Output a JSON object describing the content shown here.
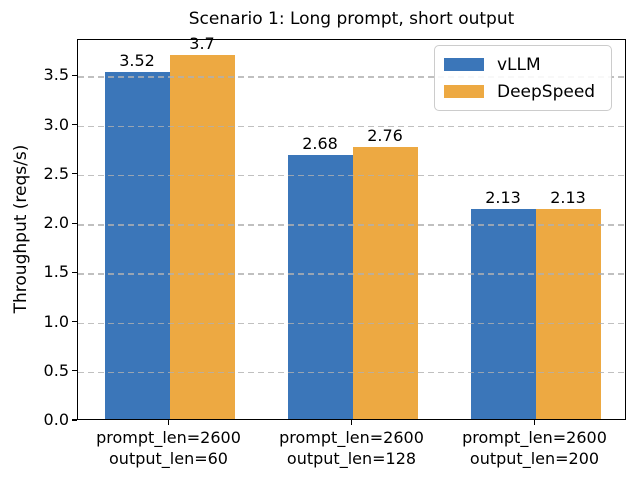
{
  "chart_data": {
    "type": "bar",
    "title": "Scenario 1: Long prompt, short output",
    "xlabel": "",
    "ylabel": "Throughput (reqs/s)",
    "categories": [
      [
        "prompt_len=2600",
        "output_len=60"
      ],
      [
        "prompt_len=2600",
        "output_len=128"
      ],
      [
        "prompt_len=2600",
        "output_len=200"
      ]
    ],
    "series": [
      {
        "name": "vLLM",
        "color": "#3b76b9",
        "values": [
          3.52,
          2.68,
          2.13
        ],
        "labels": [
          "3.52",
          "2.68",
          "2.13"
        ]
      },
      {
        "name": "DeepSpeed",
        "color": "#eda942",
        "values": [
          3.7,
          2.76,
          2.13
        ],
        "labels": [
          "3.7",
          "2.76",
          "2.13"
        ]
      }
    ],
    "ylim": [
      0,
      3.87
    ],
    "yticks": [
      0.0,
      0.5,
      1.0,
      1.5,
      2.0,
      2.5,
      3.0,
      3.5
    ],
    "ytick_labels": [
      "0.0",
      "0.5",
      "1.0",
      "1.5",
      "2.0",
      "2.5",
      "3.0",
      "3.5"
    ],
    "grid": {
      "axis": "y",
      "linestyle": "dashed",
      "color": "#b0b0b0"
    },
    "legend": {
      "position": "upper right",
      "entries": [
        "vLLM",
        "DeepSpeed"
      ]
    }
  }
}
